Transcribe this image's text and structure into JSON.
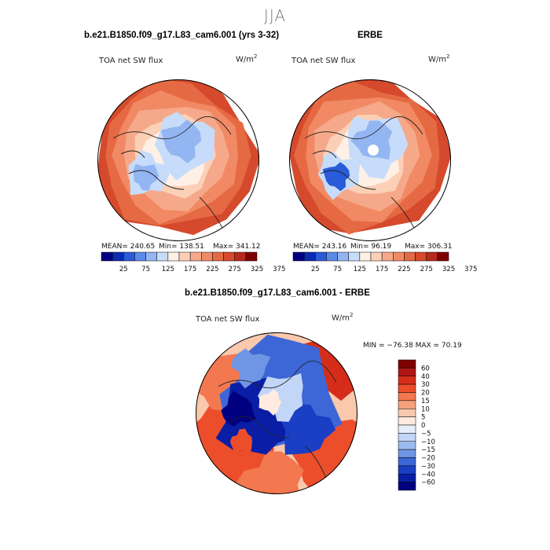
{
  "page": {
    "season_title": "JJA"
  },
  "chart_data": [
    {
      "type": "heatmap",
      "projection": "north-polar-stereographic",
      "title": "b.e21.B1850.f09_g17.L83_cam6.001 (yrs 3-32)",
      "field_label": "TOA net SW flux",
      "units": "W/m2",
      "stats": {
        "mean": "240.65",
        "min": "138.51",
        "max": "341.12"
      },
      "stats_text": {
        "mean": "MEAN= 240.65",
        "min": "Min= 138.51",
        "max": "Max= 341.12"
      },
      "colorbar": {
        "colors": [
          "#000080",
          "#0b2bb5",
          "#2a5bd8",
          "#5a8be8",
          "#93b6f2",
          "#c6dcfa",
          "#fff0e6",
          "#fbd0b7",
          "#f6a98a",
          "#f18a64",
          "#e56a44",
          "#d54a2c",
          "#b8291b",
          "#7f0000"
        ],
        "tick_labels": [
          "25",
          "75",
          "125",
          "175",
          "225",
          "275",
          "325",
          "375"
        ]
      }
    },
    {
      "type": "heatmap",
      "projection": "north-polar-stereographic",
      "title": "ERBE",
      "field_label": "TOA net SW flux",
      "units": "W/m2",
      "stats": {
        "mean": "243.16",
        "min": "96.19",
        "max": "306.31"
      },
      "stats_text": {
        "mean": "MEAN= 243.16",
        "min": "Min= 96.19",
        "max": "Max= 306.31"
      },
      "colorbar": {
        "colors": [
          "#000080",
          "#0b2bb5",
          "#2a5bd8",
          "#5a8be8",
          "#93b6f2",
          "#c6dcfa",
          "#fff0e6",
          "#fbd0b7",
          "#f6a98a",
          "#f18a64",
          "#e56a44",
          "#d54a2c",
          "#b8291b",
          "#7f0000"
        ],
        "tick_labels": [
          "25",
          "75",
          "125",
          "175",
          "225",
          "275",
          "325",
          "375"
        ]
      }
    },
    {
      "type": "heatmap",
      "projection": "north-polar-stereographic",
      "title": "b.e21.B1850.f09_g17.L83_cam6.001 - ERBE",
      "field_label": "TOA net SW flux",
      "units": "W/m2",
      "stats": {
        "min": "-76.38",
        "max": "70.19"
      },
      "stats_text": "MIN = −76.38 MAX =  70.19",
      "colorbar": {
        "colors": [
          "#7f0000",
          "#b01515",
          "#d52d1a",
          "#ec4e2c",
          "#f3784f",
          "#f6a17c",
          "#fac8ad",
          "#ffebe0",
          "#e6eefc",
          "#c2d6f7",
          "#9bbbf0",
          "#6f96e4",
          "#3d67d6",
          "#1a3ec4",
          "#0a1ea5",
          "#000080"
        ],
        "tick_labels": [
          "60",
          "40",
          "30",
          "20",
          "15",
          "10",
          "5",
          "0",
          "−5",
          "−10",
          "−15",
          "−20",
          "−30",
          "−40",
          "−60"
        ]
      }
    }
  ]
}
